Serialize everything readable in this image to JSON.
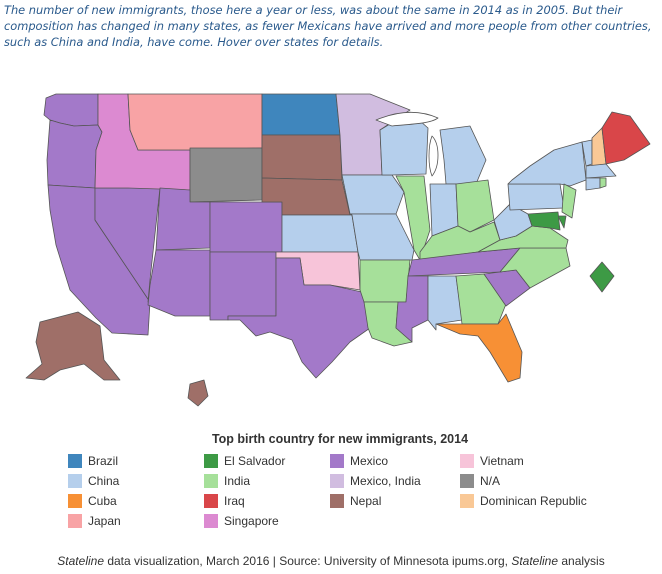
{
  "intro_text": "The number of new immigrants, those here a year or less, was about the same in 2014 as in 2005. But their composition has changed in many states, as fewer Mexicans have arrived and more people from other countries, such as China and India, have come. Hover over states for details.",
  "legend": {
    "title": "Top birth country for new immigrants, 2014",
    "items": [
      {
        "key": "brazil",
        "label": "Brazil",
        "color": "#3f86bd"
      },
      {
        "key": "el_salvador",
        "label": "El Salvador",
        "color": "#3d9a45"
      },
      {
        "key": "mexico",
        "label": "Mexico",
        "color": "#a379c9"
      },
      {
        "key": "vietnam",
        "label": "Vietnam",
        "color": "#f7c4d9"
      },
      {
        "key": "china",
        "label": "China",
        "color": "#b5cfec"
      },
      {
        "key": "india",
        "label": "India",
        "color": "#a6e09a"
      },
      {
        "key": "mexico_india",
        "label": "Mexico, India",
        "color": "#d1bde0"
      },
      {
        "key": "na",
        "label": "N/A",
        "color": "#8c8c8c"
      },
      {
        "key": "cuba",
        "label": "Cuba",
        "color": "#f79035"
      },
      {
        "key": "iraq",
        "label": "Iraq",
        "color": "#d94649"
      },
      {
        "key": "nepal",
        "label": "Nepal",
        "color": "#9f6f68"
      },
      {
        "key": "dominican_republic",
        "label": "Dominican Republic",
        "color": "#f9c896"
      },
      {
        "key": "japan",
        "label": "Japan",
        "color": "#f8a3a5"
      },
      {
        "key": "singapore",
        "label": "Singapore",
        "color": "#dc8ad1"
      }
    ]
  },
  "state_top_country": {
    "WA": "mexico",
    "OR": "mexico",
    "CA": "mexico",
    "NV": "mexico",
    "AZ": "mexico",
    "UT": "mexico",
    "NM": "mexico",
    "CO": "mexico",
    "TX": "mexico",
    "LA": "india",
    "ID": "singapore",
    "MT": "japan",
    "WY": "na",
    "ND": "brazil",
    "SD": "nepal",
    "NE": "nepal",
    "KS": "china",
    "OK": "vietnam",
    "MN": "mexico_india",
    "IA": "china",
    "MO": "china",
    "AR": "india",
    "WI": "china",
    "IL": "india",
    "MI": "china",
    "IN": "china",
    "OH": "india",
    "KY": "india",
    "TN": "mexico",
    "MS": "mexico",
    "AL": "china",
    "GA": "india",
    "FL": "cuba",
    "SC": "mexico",
    "NC": "india",
    "VA": "india",
    "WV": "china",
    "PA": "china",
    "NY": "china",
    "NJ": "india",
    "DE": "el_salvador",
    "MD": "el_salvador",
    "DC": "el_salvador",
    "CT": "china",
    "RI": "india",
    "MA": "china",
    "VT": "china",
    "NH": "dominican_republic",
    "ME": "iraq",
    "AK": "nepal",
    "HI": "nepal"
  },
  "footer": {
    "source_name": "Stateline",
    "middle": " data visualization, March 2016 | Source: University of Minnesota ipums.org, ",
    "analysis_name": "Stateline",
    "end": " analysis"
  }
}
